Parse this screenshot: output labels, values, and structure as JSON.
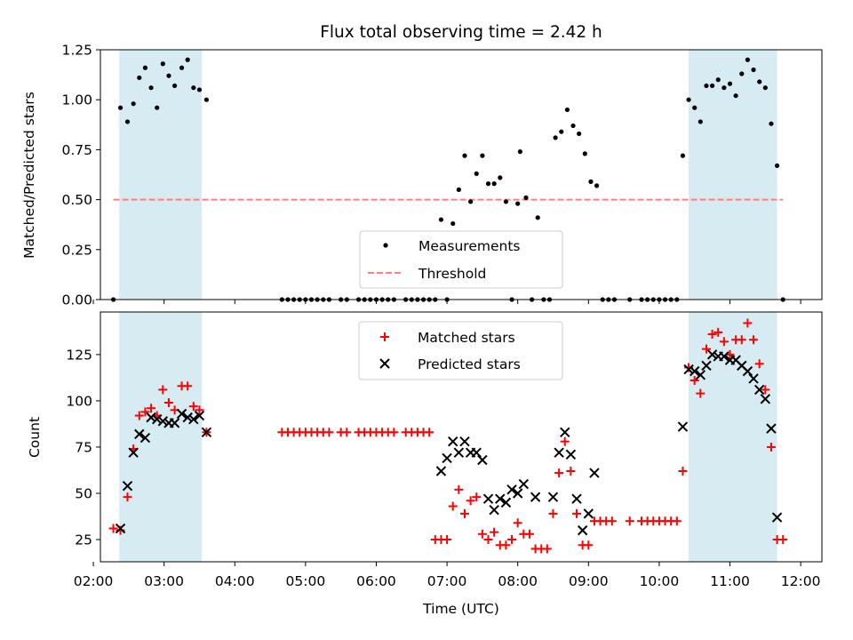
{
  "chart_data": [
    {
      "type": "scatter",
      "title": "Flux total observing time = 2.42 h",
      "ylabel": "Matched/Predicted stars",
      "xlim": [
        "02:06",
        "12:18"
      ],
      "ylim": [
        0,
        1.25
      ],
      "y_ticks": [
        0.0,
        0.25,
        0.5,
        0.75,
        1.0,
        1.25
      ],
      "y_tick_labels": [
        "0.00",
        "0.25",
        "0.50",
        "0.75",
        "1.00",
        "1.25"
      ],
      "grid": false,
      "legend_position": "bottom-center",
      "shaded_intervals": [
        [
          "02:22",
          "03:32"
        ],
        [
          "10:25",
          "11:40"
        ]
      ],
      "series": [
        {
          "name": "Measurements",
          "marker": "dot",
          "color": "#000000",
          "points": [
            [
              "02:17",
              0.0
            ],
            [
              "02:23",
              0.96
            ],
            [
              "02:29",
              0.89
            ],
            [
              "02:34",
              0.98
            ],
            [
              "02:39",
              1.11
            ],
            [
              "02:44",
              1.16
            ],
            [
              "02:49",
              1.06
            ],
            [
              "02:54",
              0.96
            ],
            [
              "02:59",
              1.18
            ],
            [
              "03:04",
              1.12
            ],
            [
              "03:09",
              1.07
            ],
            [
              "03:15",
              1.16
            ],
            [
              "03:20",
              1.2
            ],
            [
              "03:25",
              1.06
            ],
            [
              "03:30",
              1.05
            ],
            [
              "03:36",
              1.0
            ],
            [
              "04:40",
              0.0
            ],
            [
              "04:45",
              0.0
            ],
            [
              "04:50",
              0.0
            ],
            [
              "04:55",
              0.0
            ],
            [
              "05:00",
              0.0
            ],
            [
              "05:05",
              0.0
            ],
            [
              "05:10",
              0.0
            ],
            [
              "05:15",
              0.0
            ],
            [
              "05:20",
              0.0
            ],
            [
              "05:30",
              0.0
            ],
            [
              "05:35",
              0.0
            ],
            [
              "05:45",
              0.0
            ],
            [
              "05:50",
              0.0
            ],
            [
              "05:55",
              0.0
            ],
            [
              "06:00",
              0.0
            ],
            [
              "06:05",
              0.0
            ],
            [
              "06:10",
              0.0
            ],
            [
              "06:15",
              0.0
            ],
            [
              "06:25",
              0.0
            ],
            [
              "06:30",
              0.0
            ],
            [
              "06:35",
              0.0
            ],
            [
              "06:40",
              0.0
            ],
            [
              "06:45",
              0.0
            ],
            [
              "06:50",
              0.0
            ],
            [
              "06:55",
              0.4
            ],
            [
              "07:00",
              0.0
            ],
            [
              "07:05",
              0.38
            ],
            [
              "07:10",
              0.55
            ],
            [
              "07:15",
              0.72
            ],
            [
              "07:20",
              0.49
            ],
            [
              "07:25",
              0.63
            ],
            [
              "07:30",
              0.72
            ],
            [
              "07:35",
              0.58
            ],
            [
              "07:40",
              0.58
            ],
            [
              "07:45",
              0.61
            ],
            [
              "07:50",
              0.49
            ],
            [
              "07:55",
              0.0
            ],
            [
              "08:00",
              0.48
            ],
            [
              "08:02",
              0.74
            ],
            [
              "08:07",
              0.51
            ],
            [
              "08:12",
              0.0
            ],
            [
              "08:17",
              0.41
            ],
            [
              "08:22",
              0.0
            ],
            [
              "08:27",
              0.0
            ],
            [
              "08:32",
              0.81
            ],
            [
              "08:37",
              0.84
            ],
            [
              "08:42",
              0.95
            ],
            [
              "08:47",
              0.87
            ],
            [
              "08:52",
              0.83
            ],
            [
              "08:57",
              0.73
            ],
            [
              "09:02",
              0.59
            ],
            [
              "09:07",
              0.57
            ],
            [
              "09:12",
              0.0
            ],
            [
              "09:17",
              0.0
            ],
            [
              "09:22",
              0.0
            ],
            [
              "09:35",
              0.0
            ],
            [
              "09:45",
              0.0
            ],
            [
              "09:50",
              0.0
            ],
            [
              "09:55",
              0.0
            ],
            [
              "10:00",
              0.0
            ],
            [
              "10:05",
              0.0
            ],
            [
              "10:10",
              0.0
            ],
            [
              "10:15",
              0.0
            ],
            [
              "10:20",
              0.72
            ],
            [
              "10:25",
              1.0
            ],
            [
              "10:30",
              0.96
            ],
            [
              "10:35",
              0.89
            ],
            [
              "10:40",
              1.07
            ],
            [
              "10:45",
              1.07
            ],
            [
              "10:50",
              1.1
            ],
            [
              "10:55",
              1.06
            ],
            [
              "11:00",
              1.08
            ],
            [
              "11:05",
              1.02
            ],
            [
              "11:10",
              1.13
            ],
            [
              "11:15",
              1.2
            ],
            [
              "11:20",
              1.15
            ],
            [
              "11:25",
              1.09
            ],
            [
              "11:30",
              1.06
            ],
            [
              "11:35",
              0.88
            ],
            [
              "11:40",
              0.67
            ],
            [
              "11:45",
              0.0
            ]
          ]
        },
        {
          "name": "Threshold",
          "marker": "dashed-line",
          "color": "#ff7f7f",
          "points": [
            [
              "02:17",
              0.5
            ],
            [
              "11:45",
              0.5
            ]
          ]
        }
      ]
    },
    {
      "type": "scatter",
      "xlabel": "Time (UTC)",
      "ylabel": "Count",
      "xlim": [
        "02:06",
        "12:18"
      ],
      "ylim": [
        13,
        148
      ],
      "x_ticks": [
        "02:00",
        "03:00",
        "04:00",
        "05:00",
        "06:00",
        "07:00",
        "08:00",
        "09:00",
        "10:00",
        "11:00",
        "12:00"
      ],
      "y_ticks": [
        25,
        50,
        75,
        100,
        125
      ],
      "y_tick_labels": [
        "25",
        "50",
        "75",
        "100",
        "125"
      ],
      "grid": false,
      "legend_position": "top-center",
      "shaded_intervals": [
        [
          "02:22",
          "03:32"
        ],
        [
          "10:25",
          "11:40"
        ]
      ],
      "series": [
        {
          "name": "Matched stars",
          "marker": "plus",
          "color": "#ff0000",
          "points": [
            [
              "02:17",
              31
            ],
            [
              "02:23",
              30
            ],
            [
              "02:29",
              48
            ],
            [
              "02:34",
              74
            ],
            [
              "02:39",
              92
            ],
            [
              "02:44",
              94
            ],
            [
              "02:49",
              96
            ],
            [
              "02:54",
              92
            ],
            [
              "02:59",
              106
            ],
            [
              "03:04",
              99
            ],
            [
              "03:09",
              95
            ],
            [
              "03:15",
              108
            ],
            [
              "03:20",
              108
            ],
            [
              "03:25",
              97
            ],
            [
              "03:30",
              95
            ],
            [
              "03:36",
              83
            ],
            [
              "04:40",
              83
            ],
            [
              "04:45",
              83
            ],
            [
              "04:50",
              83
            ],
            [
              "04:55",
              83
            ],
            [
              "05:00",
              83
            ],
            [
              "05:05",
              83
            ],
            [
              "05:10",
              83
            ],
            [
              "05:15",
              83
            ],
            [
              "05:20",
              83
            ],
            [
              "05:30",
              83
            ],
            [
              "05:35",
              83
            ],
            [
              "05:45",
              83
            ],
            [
              "05:50",
              83
            ],
            [
              "05:55",
              83
            ],
            [
              "06:00",
              83
            ],
            [
              "06:05",
              83
            ],
            [
              "06:10",
              83
            ],
            [
              "06:15",
              83
            ],
            [
              "06:25",
              83
            ],
            [
              "06:30",
              83
            ],
            [
              "06:35",
              83
            ],
            [
              "06:40",
              83
            ],
            [
              "06:45",
              83
            ],
            [
              "06:50",
              25
            ],
            [
              "06:55",
              25
            ],
            [
              "07:00",
              25
            ],
            [
              "07:05",
              43
            ],
            [
              "07:10",
              52
            ],
            [
              "07:15",
              39
            ],
            [
              "07:20",
              46
            ],
            [
              "07:25",
              48
            ],
            [
              "07:30",
              28
            ],
            [
              "07:35",
              25
            ],
            [
              "07:40",
              29
            ],
            [
              "07:45",
              22
            ],
            [
              "07:50",
              22
            ],
            [
              "07:55",
              25
            ],
            [
              "08:00",
              34
            ],
            [
              "08:05",
              28
            ],
            [
              "08:10",
              28
            ],
            [
              "08:15",
              20
            ],
            [
              "08:20",
              20
            ],
            [
              "08:25",
              20
            ],
            [
              "08:30",
              39
            ],
            [
              "08:35",
              61
            ],
            [
              "08:40",
              78
            ],
            [
              "08:45",
              62
            ],
            [
              "08:50",
              39
            ],
            [
              "08:55",
              22
            ],
            [
              "09:00",
              22
            ],
            [
              "09:05",
              35
            ],
            [
              "09:10",
              35
            ],
            [
              "09:15",
              35
            ],
            [
              "09:20",
              35
            ],
            [
              "09:35",
              35
            ],
            [
              "09:45",
              35
            ],
            [
              "09:50",
              35
            ],
            [
              "09:55",
              35
            ],
            [
              "10:00",
              35
            ],
            [
              "10:05",
              35
            ],
            [
              "10:10",
              35
            ],
            [
              "10:15",
              35
            ],
            [
              "10:20",
              62
            ],
            [
              "10:25",
              118
            ],
            [
              "10:30",
              111
            ],
            [
              "10:35",
              104
            ],
            [
              "10:40",
              128
            ],
            [
              "10:45",
              136
            ],
            [
              "10:50",
              137
            ],
            [
              "10:55",
              132
            ],
            [
              "11:00",
              125
            ],
            [
              "11:05",
              133
            ],
            [
              "11:10",
              133
            ],
            [
              "11:15",
              142
            ],
            [
              "11:20",
              133
            ],
            [
              "11:25",
              120
            ],
            [
              "11:30",
              106
            ],
            [
              "11:35",
              75
            ],
            [
              "11:40",
              25
            ],
            [
              "11:45",
              25
            ]
          ]
        },
        {
          "name": "Predicted stars",
          "marker": "x",
          "color": "#000000",
          "points": [
            [
              "02:23",
              31
            ],
            [
              "02:29",
              54
            ],
            [
              "02:34",
              72
            ],
            [
              "02:39",
              82
            ],
            [
              "02:44",
              80
            ],
            [
              "02:49",
              91
            ],
            [
              "02:54",
              90
            ],
            [
              "02:59",
              89
            ],
            [
              "03:04",
              88
            ],
            [
              "03:09",
              88
            ],
            [
              "03:15",
              93
            ],
            [
              "03:20",
              91
            ],
            [
              "03:25",
              90
            ],
            [
              "03:30",
              92
            ],
            [
              "03:36",
              83
            ],
            [
              "06:55",
              62
            ],
            [
              "07:00",
              69
            ],
            [
              "07:05",
              78
            ],
            [
              "07:10",
              72
            ],
            [
              "07:15",
              78
            ],
            [
              "07:20",
              72
            ],
            [
              "07:25",
              72
            ],
            [
              "07:30",
              68
            ],
            [
              "07:35",
              47
            ],
            [
              "07:40",
              41
            ],
            [
              "07:45",
              47
            ],
            [
              "07:50",
              45
            ],
            [
              "07:55",
              52
            ],
            [
              "08:00",
              50
            ],
            [
              "08:05",
              55
            ],
            [
              "08:15",
              48
            ],
            [
              "08:30",
              48
            ],
            [
              "08:35",
              72
            ],
            [
              "08:40",
              83
            ],
            [
              "08:45",
              71
            ],
            [
              "08:50",
              47
            ],
            [
              "08:55",
              30
            ],
            [
              "09:00",
              39
            ],
            [
              "09:05",
              61
            ],
            [
              "10:20",
              86
            ],
            [
              "10:25",
              117
            ],
            [
              "10:30",
              116
            ],
            [
              "10:35",
              114
            ],
            [
              "10:40",
              119
            ],
            [
              "10:45",
              125
            ],
            [
              "10:50",
              124
            ],
            [
              "10:55",
              124
            ],
            [
              "11:00",
              122
            ],
            [
              "11:05",
              122
            ],
            [
              "11:10",
              119
            ],
            [
              "11:15",
              116
            ],
            [
              "11:20",
              112
            ],
            [
              "11:25",
              106
            ],
            [
              "11:30",
              101
            ],
            [
              "11:35",
              85
            ],
            [
              "11:40",
              37
            ]
          ]
        }
      ]
    }
  ]
}
